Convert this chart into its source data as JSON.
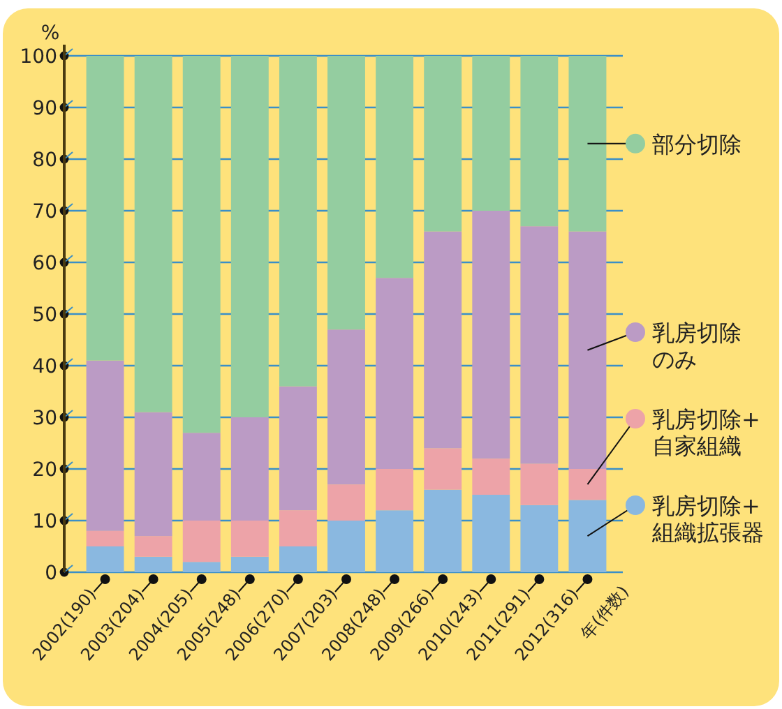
{
  "chart_data": {
    "type": "bar",
    "stacked": true,
    "ylabel": "%",
    "xlabel": "年(件数)",
    "categories": [
      "2002(190)",
      "2003(204)",
      "2004(205)",
      "2005(248)",
      "2006(270)",
      "2007(203)",
      "2008(248)",
      "2009(266)",
      "2010(243)",
      "2011(291)",
      "2012(316)"
    ],
    "series": [
      {
        "name": "乳房切除+組織拡張器",
        "color": "#8ab8e0",
        "values": [
          5,
          3,
          2,
          3,
          5,
          10,
          12,
          16,
          15,
          13,
          14
        ]
      },
      {
        "name": "乳房切除+自家組織",
        "color": "#eda3a8",
        "values": [
          3,
          4,
          8,
          7,
          7,
          7,
          8,
          8,
          7,
          8,
          6
        ]
      },
      {
        "name": "乳房切除のみ",
        "color": "#bb9bc5",
        "values": [
          33,
          24,
          17,
          20,
          24,
          30,
          37,
          42,
          48,
          46,
          46
        ]
      },
      {
        "name": "部分切除",
        "color": "#94cda0",
        "values": [
          59,
          69,
          73,
          70,
          64,
          53,
          43,
          34,
          30,
          33,
          34
        ]
      }
    ],
    "ylim": [
      0,
      100
    ],
    "yticks": [
      0,
      10,
      20,
      30,
      40,
      50,
      60,
      70,
      80,
      90,
      100
    ],
    "grid": "y",
    "legend": "right"
  }
}
